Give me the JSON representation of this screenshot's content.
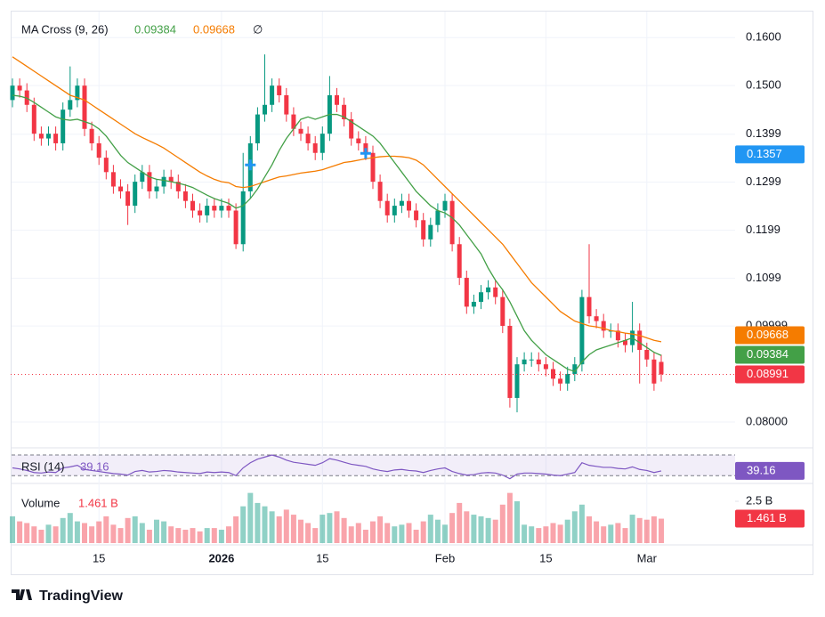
{
  "chart_data": {
    "type": "candlestick",
    "title": "MA Cross (9, 26)",
    "title_icon": "∅",
    "categories": [
      null,
      null,
      null,
      null,
      null,
      null,
      null,
      null,
      null,
      null,
      null,
      null,
      "15",
      null,
      null,
      null,
      null,
      null,
      null,
      null,
      null,
      null,
      null,
      null,
      null,
      null,
      null,
      null,
      null,
      "2026",
      null,
      null,
      null,
      null,
      null,
      null,
      null,
      null,
      null,
      null,
      null,
      null,
      null,
      "15",
      null,
      null,
      null,
      null,
      null,
      null,
      null,
      null,
      null,
      null,
      null,
      null,
      null,
      null,
      null,
      null,
      "Feb",
      null,
      null,
      null,
      null,
      null,
      null,
      null,
      null,
      null,
      null,
      null,
      null,
      null,
      "15",
      null,
      null,
      null,
      null,
      null,
      null,
      null,
      null,
      null,
      null,
      null,
      null,
      null,
      "Mar",
      null,
      null
    ],
    "open": [
      0.147,
      0.15,
      0.149,
      0.146,
      0.14,
      0.139,
      0.14,
      0.138,
      0.145,
      0.147,
      0.15,
      0.141,
      0.138,
      0.135,
      0.132,
      0.129,
      0.128,
      0.125,
      0.13,
      0.132,
      0.128,
      0.129,
      0.131,
      0.13,
      0.128,
      0.126,
      0.124,
      0.123,
      0.125,
      0.124,
      0.125,
      0.124,
      0.117,
      0.128,
      0.138,
      0.144,
      0.146,
      0.15,
      0.148,
      0.144,
      0.141,
      0.14,
      0.138,
      0.136,
      0.14,
      0.148,
      0.146,
      0.143,
      0.139,
      0.138,
      0.136,
      0.13,
      0.126,
      0.123,
      0.125,
      0.126,
      0.124,
      0.122,
      0.118,
      0.121,
      0.124,
      0.126,
      0.117,
      0.11,
      0.104,
      0.105,
      0.107,
      0.108,
      0.106,
      0.1,
      0.085,
      0.092,
      0.093,
      0.093,
      0.092,
      0.091,
      0.089,
      0.088,
      0.09,
      0.092,
      0.106,
      0.102,
      0.101,
      0.099,
      0.099,
      0.097,
      0.096,
      0.099,
      0.095,
      0.093,
      0.0925
    ],
    "high": [
      0.1515,
      0.1515,
      0.1505,
      0.1475,
      0.1415,
      0.1415,
      0.1415,
      0.1465,
      0.154,
      0.1515,
      0.1515,
      0.1425,
      0.1395,
      0.1365,
      0.1335,
      0.1305,
      0.1295,
      0.1315,
      0.1335,
      0.1335,
      0.1305,
      0.1325,
      0.1325,
      0.1315,
      0.1295,
      0.1275,
      0.1255,
      0.1265,
      0.1265,
      0.1265,
      0.1265,
      0.1255,
      0.136,
      0.1395,
      0.1455,
      0.1565,
      0.1515,
      0.1515,
      0.1495,
      0.1455,
      0.1425,
      0.1415,
      0.1395,
      0.1415,
      0.152,
      0.1495,
      0.1475,
      0.1445,
      0.1405,
      0.1395,
      0.1375,
      0.1315,
      0.1275,
      0.1265,
      0.1275,
      0.1275,
      0.1255,
      0.1235,
      0.1225,
      0.1255,
      0.1275,
      0.1275,
      0.1185,
      0.1115,
      0.1065,
      0.1085,
      0.1095,
      0.1095,
      0.1075,
      0.1015,
      0.0935,
      0.0945,
      0.0945,
      0.0945,
      0.0935,
      0.0925,
      0.0905,
      0.0915,
      0.0935,
      0.1075,
      0.117,
      0.1035,
      0.1025,
      0.1005,
      0.1005,
      0.0985,
      0.105,
      0.1005,
      0.0965,
      0.0945,
      0.094
    ],
    "low": [
      0.1455,
      0.1475,
      0.1445,
      0.1385,
      0.1375,
      0.1375,
      0.1365,
      0.1365,
      0.1435,
      0.1455,
      0.1395,
      0.1365,
      0.1335,
      0.1305,
      0.1275,
      0.1265,
      0.121,
      0.1235,
      0.1285,
      0.1265,
      0.1265,
      0.1275,
      0.1285,
      0.1265,
      0.1245,
      0.1225,
      0.1215,
      0.1215,
      0.1225,
      0.1225,
      0.1225,
      0.116,
      0.1155,
      0.1265,
      0.1365,
      0.1425,
      0.1445,
      0.1465,
      0.1425,
      0.1395,
      0.1385,
      0.1365,
      0.1345,
      0.1345,
      0.1385,
      0.1445,
      0.1415,
      0.1375,
      0.1365,
      0.1345,
      0.1285,
      0.1245,
      0.1215,
      0.1215,
      0.1235,
      0.1225,
      0.1205,
      0.1165,
      0.1165,
      0.1195,
      0.1225,
      0.1155,
      0.1085,
      0.1025,
      0.1025,
      0.1035,
      0.1055,
      0.1045,
      0.0985,
      0.083,
      0.082,
      0.0905,
      0.0915,
      0.0905,
      0.0895,
      0.0875,
      0.0865,
      0.0865,
      0.0885,
      0.0905,
      0.1005,
      0.0995,
      0.0975,
      0.0975,
      0.0955,
      0.0945,
      0.0945,
      0.088,
      0.0915,
      0.0865,
      0.0884
    ],
    "close": [
      0.15,
      0.149,
      0.146,
      0.14,
      0.139,
      0.14,
      0.138,
      0.145,
      0.147,
      0.15,
      0.141,
      0.138,
      0.135,
      0.132,
      0.129,
      0.128,
      0.125,
      0.13,
      0.132,
      0.128,
      0.129,
      0.131,
      0.13,
      0.128,
      0.126,
      0.124,
      0.123,
      0.125,
      0.124,
      0.125,
      0.124,
      0.117,
      0.128,
      0.138,
      0.144,
      0.146,
      0.15,
      0.148,
      0.144,
      0.141,
      0.14,
      0.138,
      0.136,
      0.14,
      0.148,
      0.146,
      0.143,
      0.139,
      0.138,
      0.136,
      0.13,
      0.126,
      0.123,
      0.125,
      0.126,
      0.124,
      0.122,
      0.118,
      0.121,
      0.124,
      0.126,
      0.117,
      0.11,
      0.104,
      0.105,
      0.107,
      0.108,
      0.106,
      0.1,
      0.085,
      0.092,
      0.093,
      0.093,
      0.092,
      0.091,
      0.089,
      0.088,
      0.09,
      0.092,
      0.106,
      0.102,
      0.101,
      0.099,
      0.099,
      0.097,
      0.096,
      0.099,
      0.095,
      0.093,
      0.088,
      0.08991
    ],
    "up_color": "#089981",
    "down_color": "#f23645",
    "ma_fast": {
      "color": "#43a047",
      "values": [
        0.148,
        0.1478,
        0.1474,
        0.1465,
        0.1455,
        0.1445,
        0.1435,
        0.143,
        0.1428,
        0.143,
        0.1425,
        0.142,
        0.141,
        0.1395,
        0.1375,
        0.1355,
        0.134,
        0.133,
        0.132,
        0.131,
        0.1305,
        0.1303,
        0.13,
        0.1297,
        0.1293,
        0.1288,
        0.128,
        0.1272,
        0.1265,
        0.126,
        0.1255,
        0.1245,
        0.125,
        0.1265,
        0.1285,
        0.131,
        0.1335,
        0.1365,
        0.139,
        0.141,
        0.143,
        0.1435,
        0.143,
        0.1435,
        0.144,
        0.144,
        0.1435,
        0.1425,
        0.1415,
        0.1405,
        0.1395,
        0.138,
        0.136,
        0.134,
        0.132,
        0.13,
        0.128,
        0.1265,
        0.125,
        0.124,
        0.1235,
        0.1225,
        0.121,
        0.119,
        0.117,
        0.115,
        0.112,
        0.1095,
        0.1075,
        0.105,
        0.102,
        0.099,
        0.097,
        0.0955,
        0.094,
        0.093,
        0.092,
        0.091,
        0.0905,
        0.0925,
        0.094,
        0.095,
        0.0955,
        0.096,
        0.0965,
        0.097,
        0.0975,
        0.0965,
        0.0955,
        0.0945,
        0.09384
      ]
    },
    "ma_slow": {
      "color": "#f57c00",
      "values": [
        0.156,
        0.155,
        0.154,
        0.153,
        0.152,
        0.151,
        0.15,
        0.149,
        0.148,
        0.1475,
        0.147,
        0.146,
        0.145,
        0.144,
        0.143,
        0.142,
        0.141,
        0.14,
        0.1392,
        0.1385,
        0.1378,
        0.137,
        0.136,
        0.135,
        0.134,
        0.133,
        0.132,
        0.1312,
        0.1305,
        0.13,
        0.1298,
        0.129,
        0.1288,
        0.129,
        0.1295,
        0.13,
        0.1305,
        0.131,
        0.1312,
        0.1315,
        0.1318,
        0.132,
        0.1322,
        0.1325,
        0.133,
        0.1335,
        0.134,
        0.1342,
        0.1345,
        0.1348,
        0.135,
        0.1352,
        0.1353,
        0.1353,
        0.1352,
        0.135,
        0.1345,
        0.1335,
        0.132,
        0.1305,
        0.129,
        0.1275,
        0.126,
        0.1245,
        0.123,
        0.1215,
        0.12,
        0.1185,
        0.117,
        0.115,
        0.113,
        0.111,
        0.109,
        0.1075,
        0.106,
        0.1045,
        0.103,
        0.102,
        0.101,
        0.1005,
        0.1,
        0.0998,
        0.0995,
        0.099,
        0.0988,
        0.0985,
        0.0983,
        0.098,
        0.0975,
        0.097,
        0.09668
      ]
    },
    "crosses": {
      "color": "#2196f3",
      "x": [
        33,
        49
      ],
      "values": [
        0.1335,
        0.1359
      ]
    },
    "crosshair_price": 0.1357,
    "crosshair_color": "#2196f3",
    "ylim": [
      0.0748,
      0.1656
    ],
    "yticks": [
      {
        "value": 0.16,
        "label": "0.1600"
      },
      {
        "value": 0.15,
        "label": "0.1500"
      },
      0.1399,
      0.1299,
      0.1199,
      0.1099,
      0.09999,
      {
        "value": 0.08,
        "label": "0.08000"
      }
    ],
    "grid": true,
    "rsi": {
      "title": "RSI (14)",
      "color": "#7e57c2",
      "levels": [
        30,
        70
      ],
      "ylim": [
        20,
        77
      ],
      "values": [
        45,
        43,
        40,
        36,
        35,
        37,
        36,
        45,
        47,
        50,
        42,
        40,
        38,
        36,
        34,
        33,
        31,
        38,
        40,
        37,
        38,
        40,
        39,
        37,
        36,
        35,
        34,
        37,
        36,
        37,
        36,
        30,
        45,
        55,
        62,
        66,
        70,
        66,
        60,
        56,
        54,
        52,
        50,
        55,
        63,
        60,
        56,
        52,
        50,
        48,
        43,
        40,
        38,
        41,
        42,
        40,
        39,
        36,
        40,
        43,
        45,
        38,
        34,
        31,
        32,
        35,
        36,
        35,
        31,
        24,
        33,
        35,
        35,
        34,
        33,
        31,
        30,
        33,
        36,
        55,
        50,
        48,
        46,
        46,
        44,
        43,
        47,
        42,
        40,
        36,
        39.16
      ]
    },
    "volume": {
      "title": "Volume",
      "ylim": [
        0,
        3.3
      ],
      "yticks": [
        {
          "value": 2.5,
          "label": "2.5 B"
        }
      ],
      "values": [
        1.6,
        1.3,
        1.2,
        1.0,
        0.8,
        1.1,
        1.0,
        1.5,
        1.8,
        1.3,
        1.2,
        1.0,
        1.3,
        1.6,
        1.1,
        0.9,
        1.5,
        1.6,
        1.2,
        0.8,
        1.4,
        1.3,
        1.0,
        0.9,
        0.8,
        0.9,
        0.7,
        0.9,
        0.9,
        0.8,
        1.0,
        1.6,
        2.2,
        3.0,
        2.4,
        2.2,
        1.9,
        1.6,
        2.0,
        1.7,
        1.4,
        1.2,
        0.9,
        1.7,
        1.8,
        1.9,
        1.5,
        1.0,
        1.2,
        0.8,
        1.3,
        1.6,
        1.2,
        1.0,
        1.1,
        1.2,
        0.8,
        1.3,
        1.7,
        1.4,
        1.1,
        1.8,
        2.4,
        1.9,
        1.7,
        1.6,
        1.5,
        1.4,
        2.3,
        3.0,
        2.5,
        1.1,
        1.0,
        0.9,
        1.0,
        1.2,
        1.1,
        1.4,
        1.9,
        2.3,
        1.6,
        1.3,
        1.0,
        1.1,
        1.2,
        0.9,
        1.7,
        1.5,
        1.4,
        1.6,
        1.461
      ],
      "value_labels": [
        null,
        null,
        null,
        null,
        null,
        null,
        null,
        null,
        null,
        null,
        null,
        null,
        null,
        null,
        null,
        null,
        null,
        null,
        null,
        null,
        null,
        null,
        null,
        null,
        null,
        null,
        null,
        null,
        null,
        null,
        null,
        null,
        null,
        null,
        null,
        null,
        null,
        null,
        null,
        null,
        null,
        null,
        null,
        null,
        null,
        null,
        null,
        null,
        null,
        null,
        null,
        null,
        null,
        null,
        null,
        null,
        null,
        null,
        null,
        null,
        null,
        null,
        null,
        null,
        null,
        null,
        null,
        null,
        null,
        null,
        null,
        null,
        null,
        null,
        null,
        null,
        null,
        null,
        null,
        null,
        null,
        null,
        null,
        null,
        null,
        null,
        null,
        null,
        null,
        null,
        "1.461 B"
      ]
    }
  },
  "brand": "TradingView"
}
